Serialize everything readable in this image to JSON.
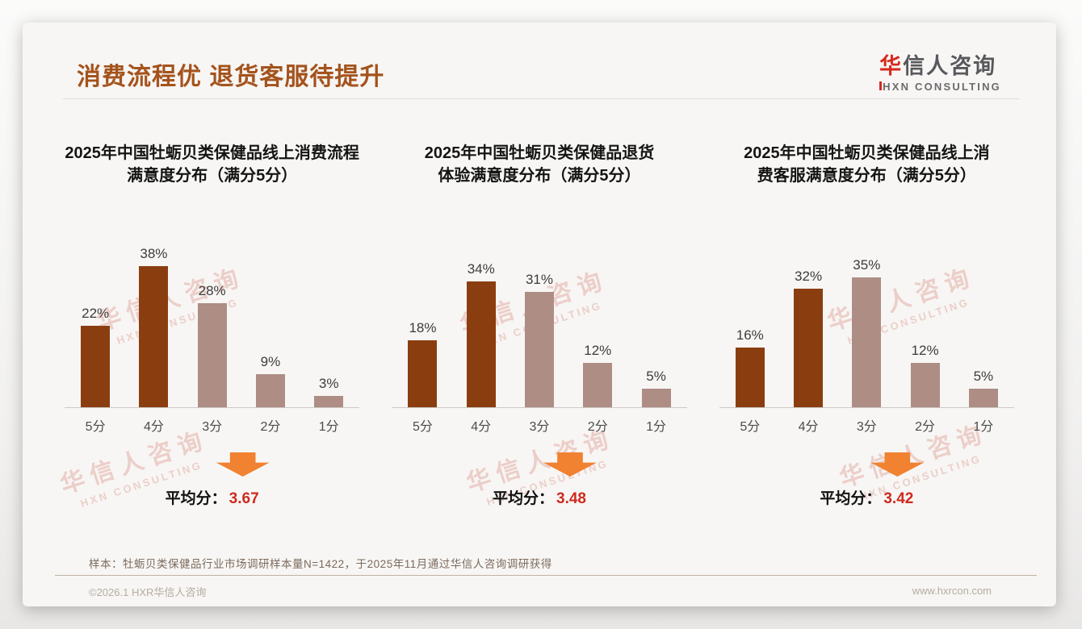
{
  "header": {
    "title": "消费流程优 退货客服待提升",
    "logo": {
      "brand_red": "华",
      "brand_gray": "信人咨询",
      "subtitle": "HXN CONSULTING"
    }
  },
  "watermark": {
    "line1": "华信人咨询",
    "line2": "HXN CONSULTING"
  },
  "footnote": {
    "text": "样本：牡蛎贝类保健品行业市场调研样本量N=1422，于2025年11月通过华信人咨询调研获得"
  },
  "footer": {
    "copyright": "©2026.1 HXR华信人咨询",
    "website": "www.hxrcon.com"
  },
  "colors": {
    "title_brown": "#A4531D",
    "bar_dark": "#8A3E10",
    "bar_light": "#AD8D84",
    "arrow_orange": "#F08232",
    "average_red": "#CD2B1F",
    "logo_red": "#D7281D"
  },
  "chart_data": [
    {
      "type": "bar",
      "title": "2025年中国牡蛎贝类保健品线上消费流程满意度分布（满分5分）",
      "title_line1": "2025年中国牡蛎贝类保健品线上消费流程",
      "title_line2": "满意度分布（满分5分）",
      "categories": [
        "5分",
        "4分",
        "3分",
        "2分",
        "1分"
      ],
      "values": [
        22,
        38,
        28,
        9,
        3
      ],
      "value_suffix": "%",
      "colors": [
        "#8A3E10",
        "#8A3E10",
        "#AD8D84",
        "#AD8D84",
        "#AD8D84"
      ],
      "ylim": [
        0,
        40
      ],
      "grid": false,
      "legend": "none",
      "avg_label": "平均分：",
      "avg_value": "3.67"
    },
    {
      "type": "bar",
      "title": "2025年中国牡蛎贝类保健品退货体验满意度分布（满分5分）",
      "title_line1": "2025年中国牡蛎贝类保健品退货",
      "title_line2": "体验满意度分布（满分5分）",
      "categories": [
        "5分",
        "4分",
        "3分",
        "2分",
        "1分"
      ],
      "values": [
        18,
        34,
        31,
        12,
        5
      ],
      "value_suffix": "%",
      "colors": [
        "#8A3E10",
        "#8A3E10",
        "#AD8D84",
        "#AD8D84",
        "#AD8D84"
      ],
      "ylim": [
        0,
        40
      ],
      "grid": false,
      "legend": "none",
      "avg_label": "平均分：",
      "avg_value": "3.48"
    },
    {
      "type": "bar",
      "title": "2025年中国牡蛎贝类保健品线上消费客服满意度分布（满分5分）",
      "title_line1": "2025年中国牡蛎贝类保健品线上消",
      "title_line2": "费客服满意度分布（满分5分）",
      "categories": [
        "5分",
        "4分",
        "3分",
        "2分",
        "1分"
      ],
      "values": [
        16,
        32,
        35,
        12,
        5
      ],
      "value_suffix": "%",
      "colors": [
        "#8A3E10",
        "#8A3E10",
        "#AD8D84",
        "#AD8D84",
        "#AD8D84"
      ],
      "ylim": [
        0,
        40
      ],
      "grid": false,
      "legend": "none",
      "avg_label": "平均分：",
      "avg_value": "3.42"
    }
  ]
}
